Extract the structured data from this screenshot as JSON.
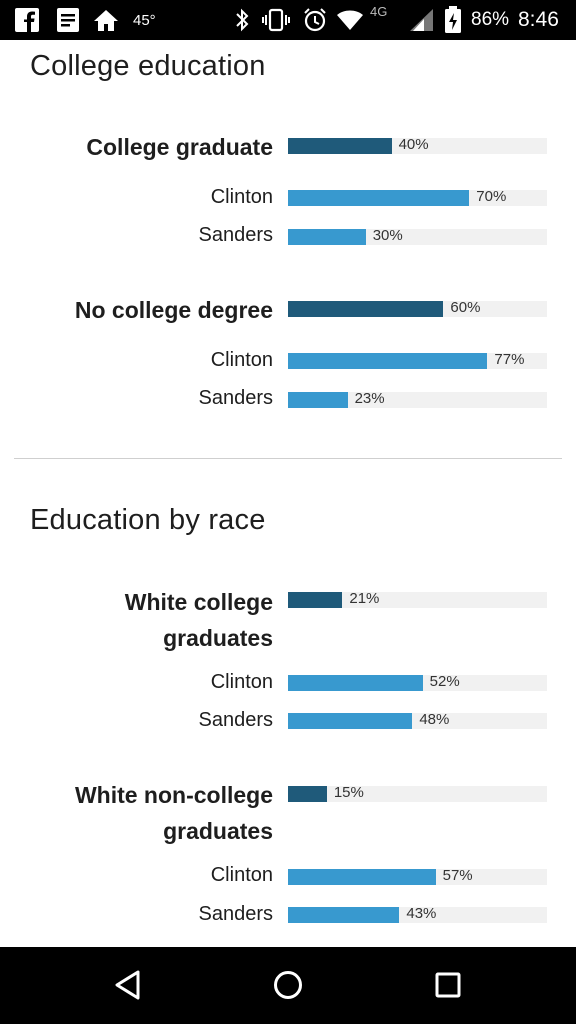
{
  "status_bar": {
    "temperature": "45°",
    "network": "4G",
    "battery": "86%",
    "time": "8:46"
  },
  "colors": {
    "group_bar": "#1f5a7a",
    "candidate_bar": "#3899cf",
    "track": "#f1f1f1"
  },
  "sections": [
    {
      "title": "College education",
      "groups": [
        {
          "label_lines": [
            "College graduate"
          ],
          "value": 40,
          "value_label": "40%",
          "candidates": [
            {
              "name": "Clinton",
              "value": 70,
              "value_label": "70%"
            },
            {
              "name": "Sanders",
              "value": 30,
              "value_label": "30%"
            }
          ]
        },
        {
          "label_lines": [
            "No college degree"
          ],
          "value": 60,
          "value_label": "60%",
          "candidates": [
            {
              "name": "Clinton",
              "value": 77,
              "value_label": "77%"
            },
            {
              "name": "Sanders",
              "value": 23,
              "value_label": "23%"
            }
          ]
        }
      ]
    },
    {
      "title": "Education by race",
      "groups": [
        {
          "label_lines": [
            "White college",
            "graduates"
          ],
          "value": 21,
          "value_label": "21%",
          "candidates": [
            {
              "name": "Clinton",
              "value": 52,
              "value_label": "52%"
            },
            {
              "name": "Sanders",
              "value": 48,
              "value_label": "48%"
            }
          ]
        },
        {
          "label_lines": [
            "White non-college",
            "graduates"
          ],
          "value": 15,
          "value_label": "15%",
          "candidates": [
            {
              "name": "Clinton",
              "value": 57,
              "value_label": "57%"
            },
            {
              "name": "Sanders",
              "value": 43,
              "value_label": "43%"
            }
          ]
        }
      ]
    }
  ],
  "chart_data": {
    "type": "bar",
    "orientation": "horizontal",
    "xlim": [
      0,
      100
    ],
    "unit": "%",
    "categories": [
      "College graduate",
      "Clinton",
      "Sanders",
      "No college degree",
      "Clinton",
      "Sanders",
      "White college graduates",
      "Clinton",
      "Sanders",
      "White non-college graduates",
      "Clinton",
      "Sanders"
    ],
    "values": [
      40,
      70,
      30,
      60,
      77,
      23,
      21,
      52,
      48,
      15,
      57,
      43
    ]
  }
}
